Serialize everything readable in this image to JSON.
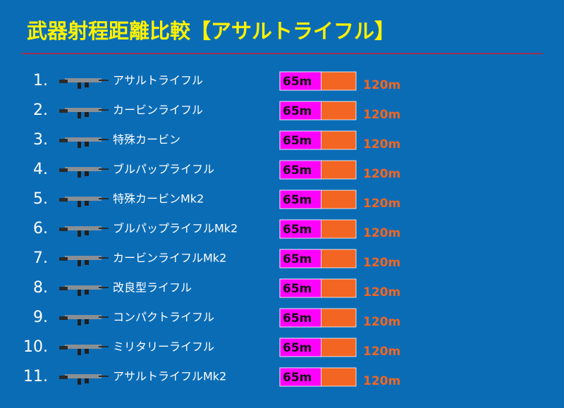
{
  "chart_data": {
    "type": "bar",
    "orientation": "horizontal",
    "overlay": true,
    "title": "武器射程距離比較【アサルトライフル】",
    "ranks": [
      "1.",
      "2.",
      "3.",
      "4.",
      "5.",
      "6.",
      "7.",
      "8.",
      "9.",
      "10.",
      "11."
    ],
    "categories": [
      "アサルトライフル",
      "カービンライフル",
      "特殊カービン",
      "ブルパップライフル",
      "特殊カービンMk2",
      "ブルパップライフルMk2",
      "カービンライフルMk2",
      "改良型ライフル",
      "コンパクトライフル",
      "ミリタリーライフル",
      "アサルトライフルMk2"
    ],
    "series": [
      {
        "color": "#f26522",
        "label_color": "#f26522",
        "values": [
          120,
          120,
          120,
          120,
          120,
          120,
          120,
          120,
          120,
          120,
          120
        ],
        "value_labels": [
          "120m",
          "120m",
          "120m",
          "120m",
          "120m",
          "120m",
          "120m",
          "120m",
          "120m",
          "120m",
          "120m"
        ]
      },
      {
        "color": "#ff00ff",
        "label_color": "#111111",
        "values": [
          65,
          65,
          65,
          65,
          65,
          65,
          65,
          65,
          65,
          65,
          65
        ],
        "value_labels": [
          "65m",
          "65m",
          "65m",
          "65m",
          "65m",
          "65m",
          "65m",
          "65m",
          "65m",
          "65m",
          "65m"
        ]
      }
    ]
  }
}
